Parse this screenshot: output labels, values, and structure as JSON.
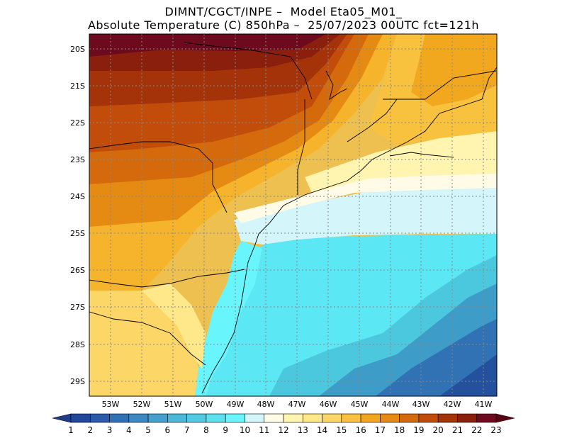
{
  "header": {
    "line1": "DIMNT/CGCT/INPE –  Model Eta05_M01_",
    "line2": "Absolute Temperature (C) 850hPa –  25/07/2023 00UTC fct=121h"
  },
  "map": {
    "lat_labels": [
      "20S",
      "21S",
      "22S",
      "23S",
      "24S",
      "25S",
      "26S",
      "27S",
      "28S",
      "29S"
    ],
    "lon_labels": [
      "53W",
      "52W",
      "51W",
      "50W",
      "49W",
      "48W",
      "47W",
      "46W",
      "45W",
      "44W",
      "43W",
      "42W",
      "41W"
    ],
    "extent": {
      "lon_min": -53.8,
      "lon_max": -40.6,
      "lat_min": -29.4,
      "lat_max": -19.9
    }
  },
  "colorbar": {
    "labels": [
      "1",
      "2",
      "3",
      "4",
      "5",
      "6",
      "7",
      "8",
      "9",
      "10",
      "11",
      "12",
      "13",
      "14",
      "15",
      "16",
      "17",
      "18",
      "19",
      "20",
      "21",
      "22",
      "23"
    ],
    "colors": [
      "#1f3c88",
      "#22479a",
      "#2a5aa8",
      "#3270b4",
      "#3d88c0",
      "#46a0cc",
      "#4cb8d8",
      "#52cbe2",
      "#5be0ee",
      "#68f5fb",
      "#d4f6fb",
      "#fffbe6",
      "#fff4b0",
      "#fee88a",
      "#fcd768",
      "#f9c23e",
      "#f2a81e",
      "#e58a12",
      "#d46a0c",
      "#c24d0a",
      "#a5330a",
      "#8a1f0d",
      "#6e0a1e",
      "#5a0016"
    ]
  }
}
